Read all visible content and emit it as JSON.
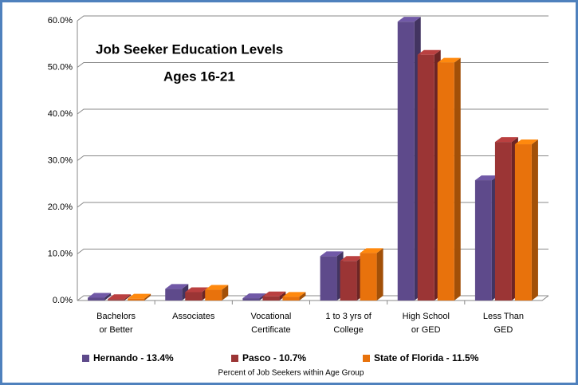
{
  "chart_data": {
    "type": "bar",
    "title": "Job Seeker Education  Levels",
    "subtitle": "Ages 16-21",
    "x_label": "Percent of Job Seekers within Age Group",
    "categories": [
      [
        "Bachelors",
        "or Better"
      ],
      [
        "Associates"
      ],
      [
        "Vocational",
        "Certificate"
      ],
      [
        "1 to 3 yrs of",
        "College"
      ],
      [
        "High School",
        "or GED"
      ],
      [
        "Less Than",
        "GED"
      ]
    ],
    "series": [
      {
        "name": "Hernando - 13.4%",
        "color": "#5e4a8b",
        "values": [
          0.6,
          2.5,
          0.5,
          9.5,
          59.8,
          25.8
        ]
      },
      {
        "name": "Pasco - 10.7%",
        "color": "#9b3535",
        "values": [
          0.3,
          1.8,
          0.9,
          8.5,
          52.7,
          34.0
        ]
      },
      {
        "name": "State of Florida - 11.5%",
        "color": "#e8720c",
        "values": [
          0.4,
          2.3,
          0.8,
          10.2,
          51.0,
          33.5
        ]
      }
    ],
    "ylim": [
      0,
      60
    ],
    "yticks": [
      {
        "value": 0,
        "label": "0.0%"
      },
      {
        "value": 10,
        "label": "10.0%"
      },
      {
        "value": 20,
        "label": "20.0%"
      },
      {
        "value": 30,
        "label": "30.0%"
      },
      {
        "value": 40,
        "label": "40.0%"
      },
      {
        "value": 50,
        "label": "50.0%"
      },
      {
        "value": 60,
        "label": "60.0%"
      }
    ],
    "grid": true,
    "legend": "bottom"
  }
}
